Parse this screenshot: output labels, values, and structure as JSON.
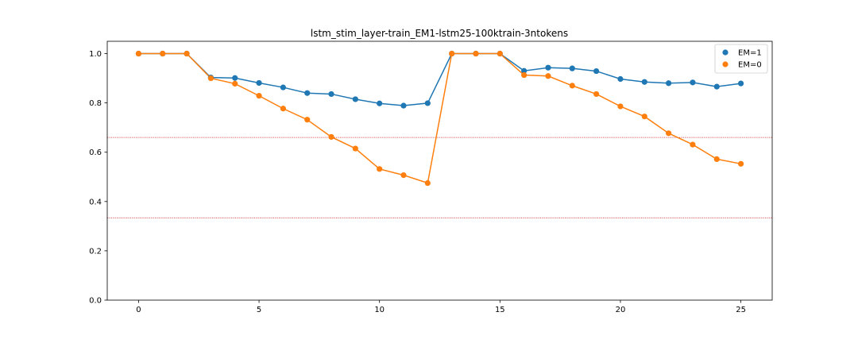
{
  "chart_data": {
    "type": "line",
    "title": "lstm_stim_layer-train_EM1-lstm25-100ktrain-3ntokens",
    "xlabel": "",
    "ylabel": "",
    "xlim": [
      -1.3,
      26.3
    ],
    "ylim": [
      0.0,
      1.05
    ],
    "x_ticks": [
      0,
      5,
      10,
      15,
      20,
      25
    ],
    "x_tick_labels": [
      "0",
      "5",
      "10",
      "15",
      "20",
      "25"
    ],
    "y_ticks": [
      0.0,
      0.2,
      0.4,
      0.6,
      0.8,
      1.0
    ],
    "y_tick_labels": [
      "0.0",
      "0.2",
      "0.4",
      "0.6",
      "0.8",
      "1.0"
    ],
    "grid": false,
    "legend_position": "top-right",
    "x": [
      0,
      1,
      2,
      3,
      4,
      5,
      6,
      7,
      8,
      9,
      10,
      11,
      12,
      13,
      14,
      15,
      16,
      17,
      18,
      19,
      20,
      21,
      22,
      23,
      24,
      25
    ],
    "series": [
      {
        "name": "EM=1",
        "color": "#1f77b4",
        "values": [
          1.0,
          1.0,
          1.0,
          0.903,
          0.901,
          0.881,
          0.863,
          0.84,
          0.836,
          0.815,
          0.798,
          0.789,
          0.799,
          1.0,
          1.0,
          1.0,
          0.93,
          0.943,
          0.94,
          0.929,
          0.897,
          0.885,
          0.88,
          0.883,
          0.866,
          0.879
        ]
      },
      {
        "name": "EM=0",
        "color": "#ff7f0e",
        "values": [
          1.0,
          1.0,
          1.0,
          0.9,
          0.878,
          0.829,
          0.777,
          0.732,
          0.662,
          0.615,
          0.532,
          0.507,
          0.475,
          1.0,
          1.0,
          1.0,
          0.913,
          0.909,
          0.87,
          0.836,
          0.786,
          0.745,
          0.677,
          0.631,
          0.572,
          0.553
        ]
      }
    ],
    "reference_lines": [
      {
        "y": 0.6599,
        "color": "#d62728",
        "style": "dotted"
      },
      {
        "y": 0.3333,
        "color": "#d62728",
        "style": "dotted"
      }
    ]
  }
}
